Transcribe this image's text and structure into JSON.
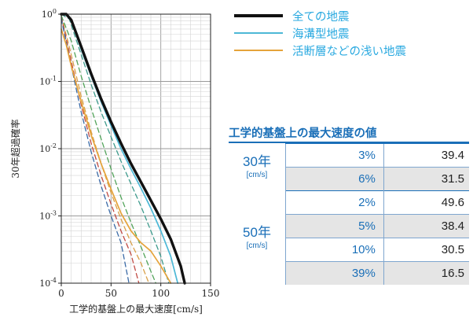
{
  "chart_data": {
    "type": "line",
    "xlabel": "工学的基盤上の最大速度[cm/s]",
    "ylabel": "30年超過確率",
    "xlim": [
      0,
      150
    ],
    "ylim": [
      0.0001,
      1
    ],
    "yscale": "log",
    "x_ticks": [
      "0",
      "50",
      "100",
      "150"
    ],
    "y_ticks": [
      "10^0",
      "10^-1",
      "10^-2",
      "10^-3",
      "10^-4"
    ],
    "grid": true,
    "legend_position": "top-right",
    "series": [
      {
        "name": "全ての地震",
        "color": "#111111",
        "style": "solid",
        "points": [
          [
            0,
            1
          ],
          [
            5,
            1
          ],
          [
            10,
            0.82
          ],
          [
            20,
            0.33
          ],
          [
            30,
            0.13
          ],
          [
            40,
            0.055
          ],
          [
            50,
            0.025
          ],
          [
            60,
            0.012
          ],
          [
            70,
            0.006
          ],
          [
            80,
            0.0032
          ],
          [
            90,
            0.0017
          ],
          [
            100,
            0.0009
          ],
          [
            110,
            0.00045
          ],
          [
            120,
            0.00018
          ],
          [
            124,
            0.0001
          ]
        ]
      },
      {
        "name": "海溝型地震",
        "color": "#4db8d6",
        "style": "solid",
        "points": [
          [
            0,
            1
          ],
          [
            5,
            1
          ],
          [
            10,
            0.8
          ],
          [
            20,
            0.3
          ],
          [
            30,
            0.12
          ],
          [
            40,
            0.05
          ],
          [
            50,
            0.022
          ],
          [
            60,
            0.01
          ],
          [
            70,
            0.005
          ],
          [
            80,
            0.0026
          ],
          [
            90,
            0.0013
          ],
          [
            100,
            0.0006
          ],
          [
            110,
            0.00025
          ],
          [
            117,
            0.0001
          ]
        ]
      },
      {
        "name": "活断層などの浅い地震",
        "color": "#e5a33a",
        "style": "solid",
        "points": [
          [
            0,
            0.6
          ],
          [
            5,
            0.35
          ],
          [
            10,
            0.17
          ],
          [
            20,
            0.05
          ],
          [
            30,
            0.016
          ],
          [
            40,
            0.006
          ],
          [
            50,
            0.0025
          ],
          [
            60,
            0.0011
          ],
          [
            70,
            0.0006
          ],
          [
            80,
            0.0004
          ],
          [
            90,
            0.0003
          ],
          [
            100,
            0.00018
          ],
          [
            110,
            0.0001
          ]
        ]
      },
      {
        "color": "#3d9a8c",
        "style": "dashed",
        "points": [
          [
            0,
            1
          ],
          [
            8,
            0.85
          ],
          [
            20,
            0.25
          ],
          [
            30,
            0.09
          ],
          [
            40,
            0.035
          ],
          [
            50,
            0.015
          ],
          [
            60,
            0.0065
          ],
          [
            70,
            0.003
          ],
          [
            80,
            0.0014
          ],
          [
            90,
            0.0006
          ],
          [
            100,
            0.00025
          ],
          [
            108,
            0.0001
          ]
        ]
      },
      {
        "color": "#d9a04a",
        "style": "dashed",
        "points": [
          [
            0,
            0.95
          ],
          [
            10,
            0.25
          ],
          [
            20,
            0.06
          ],
          [
            30,
            0.018
          ],
          [
            40,
            0.006
          ],
          [
            50,
            0.0022
          ],
          [
            60,
            0.0009
          ],
          [
            70,
            0.0004
          ],
          [
            80,
            0.0002
          ],
          [
            88,
            0.0001
          ]
        ]
      },
      {
        "color": "#c04a43",
        "style": "dashed",
        "points": [
          [
            0,
            0.9
          ],
          [
            10,
            0.2
          ],
          [
            20,
            0.045
          ],
          [
            30,
            0.012
          ],
          [
            40,
            0.004
          ],
          [
            50,
            0.0015
          ],
          [
            60,
            0.0006
          ],
          [
            70,
            0.00027
          ],
          [
            78,
            0.0001
          ]
        ]
      },
      {
        "color": "#3a6aa6",
        "style": "dashed",
        "points": [
          [
            0,
            0.85
          ],
          [
            10,
            0.17
          ],
          [
            20,
            0.035
          ],
          [
            30,
            0.009
          ],
          [
            40,
            0.0028
          ],
          [
            50,
            0.001
          ],
          [
            60,
            0.0004
          ],
          [
            68,
            0.0001
          ]
        ]
      },
      {
        "color": "#52a35a",
        "style": "dashed",
        "points": [
          [
            0,
            0.95
          ],
          [
            10,
            0.4
          ],
          [
            20,
            0.12
          ],
          [
            30,
            0.04
          ],
          [
            40,
            0.014
          ],
          [
            50,
            0.005
          ],
          [
            60,
            0.0019
          ],
          [
            70,
            0.0008
          ],
          [
            80,
            0.00035
          ],
          [
            90,
            0.00015
          ],
          [
            95,
            0.0001
          ]
        ]
      }
    ]
  },
  "table": {
    "title": "工学的基盤上の最大速度の値",
    "groups": [
      {
        "label": "30年",
        "unit": "[cm/s]",
        "rows": [
          {
            "prob": "3%",
            "value": "39.4"
          },
          {
            "prob": "6%",
            "value": "31.5"
          }
        ]
      },
      {
        "label": "50年",
        "unit": "[cm/s]",
        "rows": [
          {
            "prob": "2%",
            "value": "49.6"
          },
          {
            "prob": "5%",
            "value": "38.4"
          },
          {
            "prob": "10%",
            "value": "30.5"
          },
          {
            "prob": "39%",
            "value": "16.5"
          }
        ]
      }
    ]
  }
}
